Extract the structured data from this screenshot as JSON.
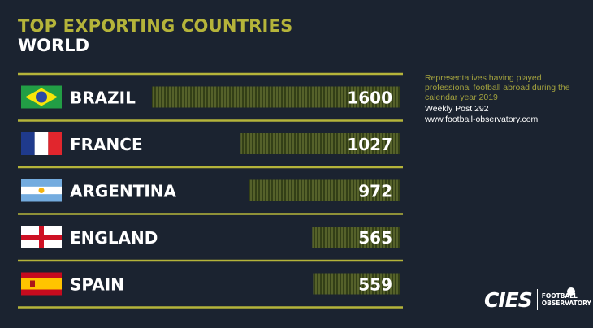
{
  "title": "TOP EXPORTING COUNTRIES",
  "subtitle": "WORLD",
  "note": {
    "description": "Representatives having played professional football abroad during the calendar year 2019",
    "post": "Weekly Post 292",
    "url": "www.football-observatory.com"
  },
  "logo": {
    "brand": "CIES",
    "line1": "FOOTBALL",
    "line2": "OBSERVATORY"
  },
  "colors": {
    "background": "#1b2330",
    "accent": "#b5b43a",
    "bar": "#3e4a1c",
    "bar_stripe": "#5a6628",
    "text": "#ffffff"
  },
  "chart_data": {
    "type": "bar",
    "orientation": "horizontal",
    "categories": [
      "BRAZIL",
      "FRANCE",
      "ARGENTINA",
      "ENGLAND",
      "SPAIN"
    ],
    "values": [
      1600,
      1027,
      972,
      565,
      559
    ],
    "flags": [
      "brazil-flag",
      "france-flag",
      "argentina-flag",
      "england-flag",
      "spain-flag"
    ],
    "title": "TOP EXPORTING COUNTRIES",
    "subtitle": "WORLD",
    "xlim": [
      0,
      1600
    ],
    "grid": false,
    "legend": "none"
  }
}
